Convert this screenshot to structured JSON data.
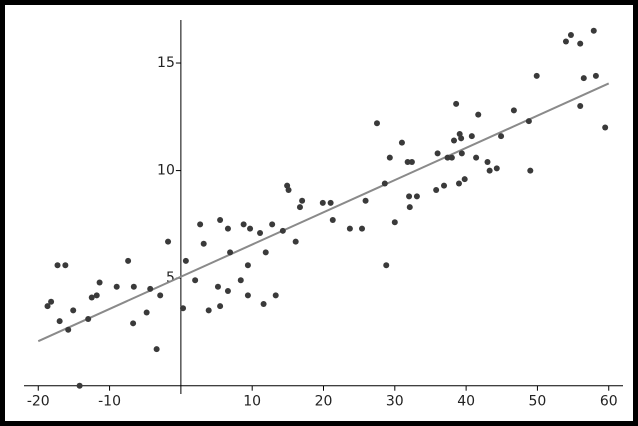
{
  "chart_data": {
    "type": "scatter",
    "x": [
      -18.7,
      -18.2,
      -17.3,
      -16.2,
      -17,
      -15.8,
      -15.1,
      -14.2,
      -13,
      -12.5,
      -11.8,
      -11.4,
      -9,
      -7.4,
      -6.7,
      -6.6,
      -4.8,
      -4.3,
      -3.4,
      -2.9,
      -1.8,
      0.3,
      0.7,
      2,
      2.7,
      3.2,
      3.9,
      5.2,
      5.5,
      5.5,
      6.6,
      6.6,
      6.9,
      8.4,
      8.8,
      9.4,
      9.7,
      9.4,
      11.1,
      11.6,
      11.9,
      12.8,
      13.3,
      14.3,
      14.9,
      15.1,
      16.1,
      16.7,
      17,
      19.9,
      21,
      21.3,
      23.7,
      25.4,
      25.9,
      27.5,
      28.6,
      28.8,
      29.3,
      30,
      31,
      31.8,
      32.4,
      32.1,
      32,
      33.1,
      35.8,
      36,
      36.9,
      37.4,
      38,
      38.3,
      38.6,
      39,
      39.1,
      39.3,
      39.4,
      39.8,
      40.8,
      41.4,
      41.7,
      43,
      43.3,
      44.3,
      44.9,
      46.7,
      49,
      48.8,
      49.9,
      54,
      54.7,
      56,
      56,
      56.5,
      57.9,
      58.2,
      59.5
    ],
    "y": [
      3.7,
      3.9,
      5.6,
      5.6,
      3,
      2.6,
      3.5,
      0,
      3.1,
      4.1,
      4.2,
      4.8,
      4.6,
      5.8,
      2.9,
      4.6,
      3.4,
      4.5,
      1.7,
      4.2,
      6.7,
      3.6,
      5.8,
      4.9,
      7.5,
      6.6,
      3.5,
      4.6,
      3.7,
      7.7,
      7.3,
      4.4,
      6.2,
      4.9,
      7.5,
      5.6,
      7.3,
      4.2,
      7.1,
      3.8,
      6.2,
      7.5,
      4.2,
      7.2,
      9.3,
      9.1,
      6.7,
      8.3,
      8.6,
      8.5,
      8.5,
      7.7,
      7.3,
      7.3,
      8.6,
      12.2,
      9.4,
      5.6,
      10.6,
      7.6,
      11.3,
      10.4,
      10.4,
      8.3,
      8.8,
      8.8,
      9.1,
      10.8,
      9.3,
      10.6,
      10.6,
      11.4,
      13.1,
      9.4,
      11.7,
      11.5,
      10.8,
      9.6,
      11.6,
      10.6,
      12.6,
      10.4,
      10,
      10.1,
      11.6,
      12.8,
      10,
      12.3,
      14.4,
      16,
      16.3,
      15.9,
      13,
      14.3,
      16.5,
      14.4,
      12
    ],
    "color": "#3a3a3a",
    "fit_line": {
      "x": [
        -20,
        60
      ],
      "y": [
        2.07,
        14.05
      ],
      "color": "#8a8a8a"
    },
    "xlim": [
      -22,
      62
    ],
    "ylim": [
      -0.2,
      17
    ],
    "xticks": [
      -20,
      -10,
      10,
      20,
      30,
      40,
      50,
      60
    ],
    "yticks": [
      5,
      10,
      15
    ]
  }
}
